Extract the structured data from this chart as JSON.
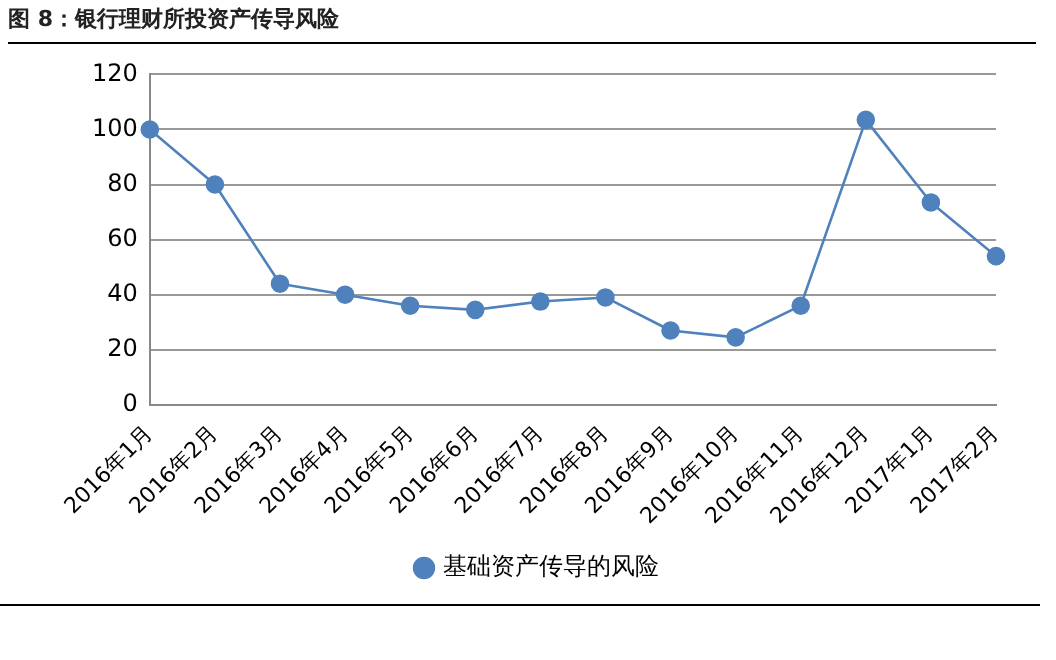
{
  "chart_data": {
    "type": "line",
    "title": "图 8：银行理财所投资产传导风险",
    "categories": [
      "2016年1月",
      "2016年2月",
      "2016年3月",
      "2016年4月",
      "2016年5月",
      "2016年6月",
      "2016年7月",
      "2016年8月",
      "2016年9月",
      "2016年10月",
      "2016年11月",
      "2016年12月",
      "2017年1月",
      "2017年2月"
    ],
    "series": [
      {
        "name": "基础资产传导的风险",
        "color": "#4f81bd",
        "values": [
          100,
          80,
          44,
          40,
          36,
          34.5,
          37.5,
          39,
          27,
          24.5,
          36,
          103.5,
          73.5,
          54
        ]
      }
    ],
    "ylim": [
      0,
      120
    ],
    "yticks": [
      0,
      20,
      40,
      60,
      80,
      100,
      120
    ],
    "grid": "y",
    "legend": "bottom",
    "marker": "circle",
    "line_style": "solid"
  }
}
